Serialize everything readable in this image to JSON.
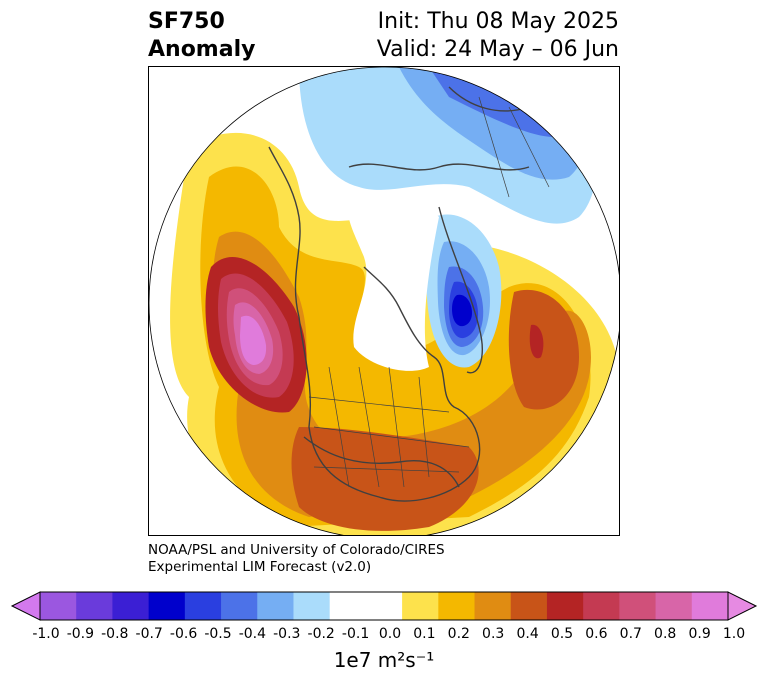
{
  "title": {
    "left_line1": "SF750",
    "left_line2": "Anomaly",
    "right_line1": "Init: Thu 08 May 2025",
    "right_line2": "Valid: 24 May – 06 Jun"
  },
  "credit": {
    "line1": "NOAA/PSL and University of Colorado/CIRES",
    "line2": "Experimental LIM Forecast (v2.0)"
  },
  "colorbar": {
    "label": "1e7 m²s⁻¹",
    "ticks": [
      "-1.0",
      "-0.9",
      "-0.8",
      "-0.7",
      "-0.6",
      "-0.5",
      "-0.4",
      "-0.3",
      "-0.2",
      "-0.1",
      "0.0",
      "0.1",
      "0.2",
      "0.3",
      "0.4",
      "0.5",
      "0.6",
      "0.7",
      "0.8",
      "0.9",
      "1.0"
    ],
    "colors": [
      "#9b57e0",
      "#6a3bdb",
      "#3b1fd4",
      "#0000cc",
      "#2a3fe0",
      "#4c72e8",
      "#75aef3",
      "#aadcfb",
      "#ffffff",
      "#ffffff",
      "#fde24c",
      "#f4b800",
      "#e08c12",
      "#c85418",
      "#b42424",
      "#c43a52",
      "#d0507a",
      "#d865a8",
      "#e07bdb"
    ],
    "over_color": "#e68ae2",
    "under_color": "#d379ee"
  },
  "map": {
    "projection": "north-polar-stereographic",
    "field": "streamfunction-750hPa-anomaly"
  }
}
